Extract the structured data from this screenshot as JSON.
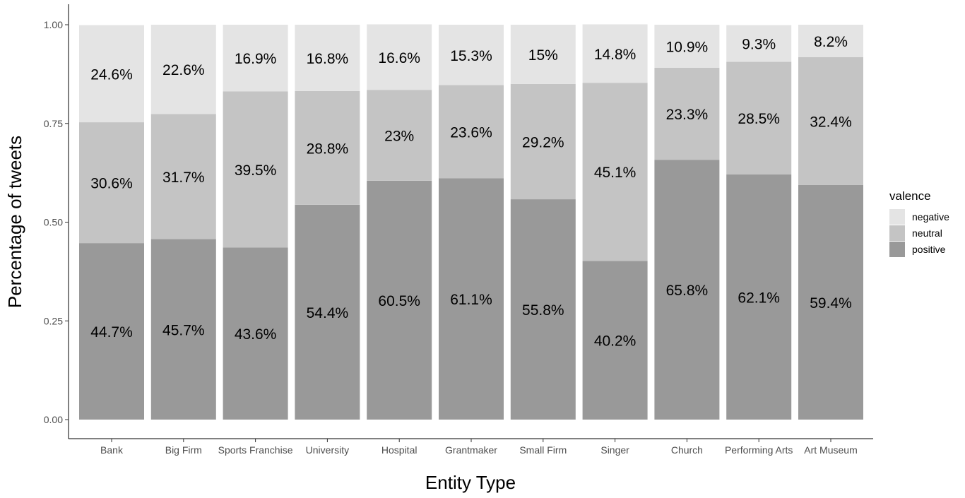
{
  "chart_data": {
    "type": "bar",
    "stacked": true,
    "xlabel": "Entity Type",
    "ylabel": "Percentage of tweets",
    "ylim": [
      0,
      1
    ],
    "yticks": [
      "0.00",
      "0.25",
      "0.50",
      "0.75",
      "1.00"
    ],
    "grid": false,
    "categories": [
      "Bank",
      "Big Firm",
      "Sports Franchise",
      "University",
      "Hospital",
      "Grantmaker",
      "Small Firm",
      "Singer",
      "Church",
      "Performing Arts",
      "Art Museum"
    ],
    "series": [
      {
        "name": "positive",
        "color": "#999999",
        "values": [
          0.447,
          0.457,
          0.436,
          0.544,
          0.605,
          0.611,
          0.558,
          0.402,
          0.658,
          0.621,
          0.594
        ],
        "labels": [
          "44.7%",
          "45.7%",
          "43.6%",
          "54.4%",
          "60.5%",
          "61.1%",
          "55.8%",
          "40.2%",
          "65.8%",
          "62.1%",
          "59.4%"
        ]
      },
      {
        "name": "neutral",
        "color": "#c4c4c4",
        "values": [
          0.306,
          0.317,
          0.395,
          0.288,
          0.23,
          0.236,
          0.292,
          0.451,
          0.233,
          0.285,
          0.324
        ],
        "labels": [
          "30.6%",
          "31.7%",
          "39.5%",
          "28.8%",
          "23%",
          "23.6%",
          "29.2%",
          "45.1%",
          "23.3%",
          "28.5%",
          "32.4%"
        ]
      },
      {
        "name": "negative",
        "color": "#e4e4e4",
        "values": [
          0.246,
          0.226,
          0.169,
          0.168,
          0.166,
          0.153,
          0.15,
          0.148,
          0.109,
          0.093,
          0.082
        ],
        "labels": [
          "24.6%",
          "22.6%",
          "16.9%",
          "16.8%",
          "16.6%",
          "15.3%",
          "15%",
          "14.8%",
          "10.9%",
          "9.3%",
          "8.2%"
        ]
      }
    ],
    "legend": {
      "title": "valence",
      "position": "right",
      "items": [
        "negative",
        "neutral",
        "positive"
      ]
    }
  }
}
